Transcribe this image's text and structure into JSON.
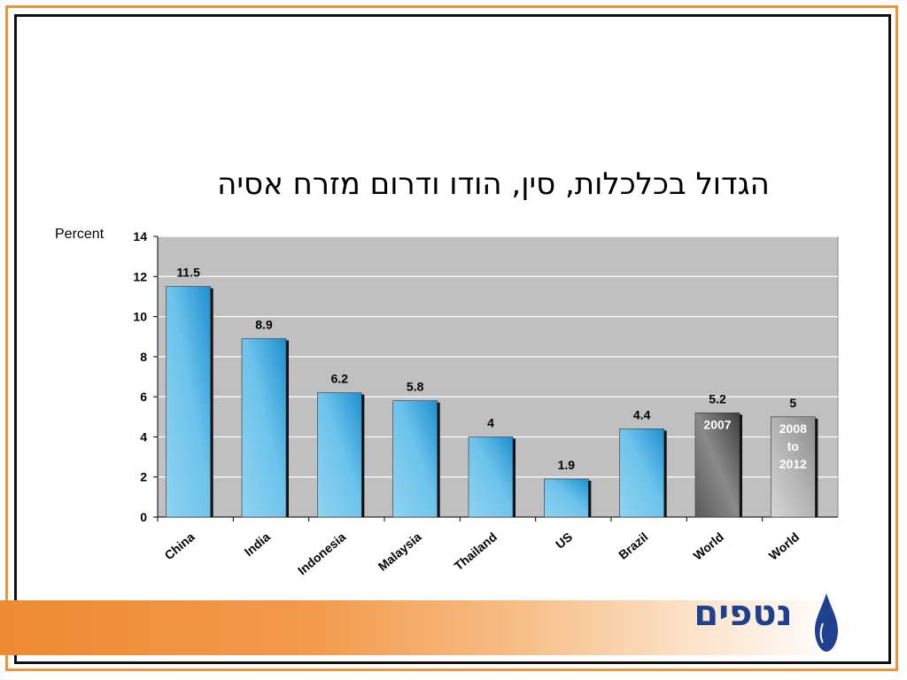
{
  "slide": {
    "title": "הגדול בכלכלות, סין, הודו ודרום מזרח אסיה",
    "logo_text": "נטפים"
  },
  "colors": {
    "frame_outer": "#f0923a",
    "frame_inner": "#111111",
    "plot_background": "#c0c0c0",
    "bar_primary_light": "#8fd3f0",
    "bar_primary_dark": "#1e8fd0",
    "bar_world_dark": "#4a4a4a",
    "bar_world_light": "#bdbdbd",
    "logo_blue": "#1f3f8f"
  },
  "chart_data": {
    "type": "bar",
    "ylabel": "Percent",
    "ylim": [
      0,
      14
    ],
    "yticks": [
      "0",
      "2",
      "4",
      "6",
      "8",
      "10",
      "12",
      "14"
    ],
    "grid": true,
    "categories": [
      "China",
      "India",
      "Indonesia",
      "Malaysia",
      "Thailand",
      "US",
      "Brazil",
      "World",
      "World"
    ],
    "values": [
      11.5,
      8.9,
      6.2,
      5.8,
      4,
      1.9,
      4.4,
      5.2,
      5
    ],
    "value_labels": [
      "11.5",
      "8.9",
      "6.2",
      "5.8",
      "4",
      "1.9",
      "4.4",
      "5.2",
      "5"
    ],
    "bar_styles": [
      "blue",
      "blue",
      "blue",
      "blue",
      "blue",
      "blue",
      "blue",
      "dark",
      "gray"
    ],
    "annotations": [
      {
        "category_index": 7,
        "lines": [
          "2007"
        ]
      },
      {
        "category_index": 8,
        "lines": [
          "2008",
          "to",
          "2012"
        ]
      }
    ]
  }
}
